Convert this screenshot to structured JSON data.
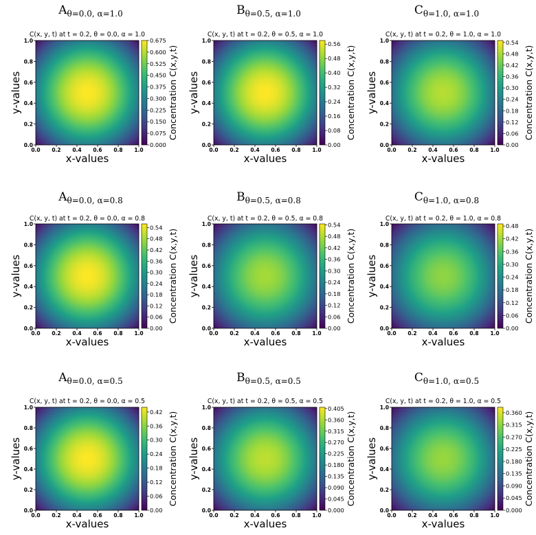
{
  "colors": {
    "colormap": [
      "#440154",
      "#46327e",
      "#365c8d",
      "#277f8e",
      "#1fa187",
      "#4ac16d",
      "#a0da39",
      "#fde725"
    ],
    "text": "#000000",
    "background": "#ffffff"
  },
  "chart_data": [
    {
      "type": "heatmap",
      "label_letter": "A",
      "label_sub": "θ=0.0, α=1.0",
      "title": "C(x, y, t) at t = 0.2, θ = 0.0,  α = 1.0",
      "xlabel": "x-values",
      "ylabel": "y-values",
      "colorbar_label": "Concentration  C(x,y,t)",
      "xlim": [
        0,
        1
      ],
      "ylim": [
        0,
        1
      ],
      "xticks": [
        "0.0",
        "0.2",
        "0.4",
        "0.6",
        "0.8",
        "1.0"
      ],
      "yticks": [
        "0.0",
        "0.2",
        "0.4",
        "0.6",
        "0.8",
        "1.0"
      ],
      "peak": 0.675,
      "cmax": 0.675,
      "cbar_ticks": [
        "0.000",
        "0.075",
        "0.150",
        "0.225",
        "0.300",
        "0.375",
        "0.450",
        "0.525",
        "0.600",
        "0.675"
      ],
      "cbar_values": [
        0,
        0.075,
        0.15,
        0.225,
        0.3,
        0.375,
        0.45,
        0.525,
        0.6,
        0.675
      ]
    },
    {
      "type": "heatmap",
      "label_letter": "B",
      "label_sub": "θ=0.5, α=1.0",
      "title": "C(x, y, t) at t = 0.2, θ = 0.5,  α = 1.0",
      "xlabel": "x-values",
      "ylabel": "y-values",
      "colorbar_label": "Concentration  C(x,y,t)",
      "xlim": [
        0,
        1
      ],
      "ylim": [
        0,
        1
      ],
      "xticks": [
        "0.0",
        "0.2",
        "0.4",
        "0.6",
        "0.8",
        "1.0"
      ],
      "yticks": [
        "0.0",
        "0.2",
        "0.4",
        "0.6",
        "0.8",
        "1.0"
      ],
      "peak": 0.58,
      "cmax": 0.58,
      "cbar_ticks": [
        "0.00",
        "0.08",
        "0.16",
        "0.24",
        "0.32",
        "0.40",
        "0.48",
        "0.56"
      ],
      "cbar_values": [
        0,
        0.08,
        0.16,
        0.24,
        0.32,
        0.4,
        0.48,
        0.56
      ]
    },
    {
      "type": "heatmap",
      "label_letter": "C",
      "label_sub": "θ=1.0, α=1.0",
      "title": "C(x, y, t) at t = 0.2, θ = 1.0,  α = 1.0",
      "xlabel": "x-values",
      "ylabel": "y-values",
      "colorbar_label": "Concentration  C(x,y,t)",
      "xlim": [
        0,
        1
      ],
      "ylim": [
        0,
        1
      ],
      "xticks": [
        "0.0",
        "0.2",
        "0.4",
        "0.6",
        "0.8",
        "1.0"
      ],
      "yticks": [
        "0.0",
        "0.2",
        "0.4",
        "0.6",
        "0.8",
        "1.0"
      ],
      "peak": 0.49,
      "cmax": 0.55,
      "cbar_ticks": [
        "0.00",
        "0.06",
        "0.12",
        "0.18",
        "0.24",
        "0.30",
        "0.36",
        "0.42",
        "0.48",
        "0.54"
      ],
      "cbar_values": [
        0,
        0.06,
        0.12,
        0.18,
        0.24,
        0.3,
        0.36,
        0.42,
        0.48,
        0.54
      ]
    },
    {
      "type": "heatmap",
      "label_letter": "A",
      "label_sub": "θ=0.0, α=0.8",
      "title": "C(x, y, t) at t = 0.2, θ = 0.0,  α = 0.8",
      "xlabel": "x-values",
      "ylabel": "y-values",
      "colorbar_label": "Concentration  C(x,y,t)",
      "xlim": [
        0,
        1
      ],
      "ylim": [
        0,
        1
      ],
      "xticks": [
        "0.0",
        "0.2",
        "0.4",
        "0.6",
        "0.8",
        "1.0"
      ],
      "yticks": [
        "0.0",
        "0.2",
        "0.4",
        "0.6",
        "0.8",
        "1.0"
      ],
      "peak": 0.56,
      "cmax": 0.56,
      "cbar_ticks": [
        "0.00",
        "0.06",
        "0.12",
        "0.18",
        "0.24",
        "0.30",
        "0.36",
        "0.42",
        "0.48",
        "0.54"
      ],
      "cbar_values": [
        0,
        0.06,
        0.12,
        0.18,
        0.24,
        0.3,
        0.36,
        0.42,
        0.48,
        0.54
      ]
    },
    {
      "type": "heatmap",
      "label_letter": "B",
      "label_sub": "θ=0.5, α=0.8",
      "title": "C(x, y, t) at t = 0.2, θ = 0.5,  α = 0.8",
      "xlabel": "x-values",
      "ylabel": "y-values",
      "colorbar_label": "Concentration  C(x,y,t)",
      "xlim": [
        0,
        1
      ],
      "ylim": [
        0,
        1
      ],
      "xticks": [
        "0.0",
        "0.2",
        "0.4",
        "0.6",
        "0.8",
        "1.0"
      ],
      "yticks": [
        "0.0",
        "0.2",
        "0.4",
        "0.6",
        "0.8",
        "1.0"
      ],
      "peak": 0.47,
      "cmax": 0.545,
      "cbar_ticks": [
        "0.00",
        "0.06",
        "0.12",
        "0.18",
        "0.24",
        "0.30",
        "0.36",
        "0.42",
        "0.48",
        "0.54"
      ],
      "cbar_values": [
        0,
        0.06,
        0.12,
        0.18,
        0.24,
        0.3,
        0.36,
        0.42,
        0.48,
        0.54
      ]
    },
    {
      "type": "heatmap",
      "label_letter": "C",
      "label_sub": "θ=1.0, α=0.8",
      "title": "C(x, y, t) at t = 0.2, θ = 1.0,  α = 0.8",
      "xlabel": "x-values",
      "ylabel": "y-values",
      "colorbar_label": "Concentration  C(x,y,t)",
      "xlim": [
        0,
        1
      ],
      "ylim": [
        0,
        1
      ],
      "xticks": [
        "0.0",
        "0.2",
        "0.4",
        "0.6",
        "0.8",
        "1.0"
      ],
      "yticks": [
        "0.0",
        "0.2",
        "0.4",
        "0.6",
        "0.8",
        "1.0"
      ],
      "peak": 0.405,
      "cmax": 0.49,
      "cbar_ticks": [
        "0.00",
        "0.06",
        "0.12",
        "0.18",
        "0.24",
        "0.30",
        "0.36",
        "0.42",
        "0.48"
      ],
      "cbar_values": [
        0,
        0.06,
        0.12,
        0.18,
        0.24,
        0.3,
        0.36,
        0.42,
        0.48
      ]
    },
    {
      "type": "heatmap",
      "label_letter": "A",
      "label_sub": "θ=0.0, α=0.5",
      "title": "C(x, y, t) at t = 0.2, θ = 0.0,  α = 0.5",
      "xlabel": "x-values",
      "ylabel": "y-values",
      "colorbar_label": "Concentration  C(x,y,t)",
      "xlim": [
        0,
        1
      ],
      "ylim": [
        0,
        1
      ],
      "xticks": [
        "0.0",
        "0.2",
        "0.4",
        "0.6",
        "0.8",
        "1.0"
      ],
      "yticks": [
        "0.0",
        "0.2",
        "0.4",
        "0.6",
        "0.8",
        "1.0"
      ],
      "peak": 0.44,
      "cmax": 0.44,
      "cbar_ticks": [
        "0.00",
        "0.06",
        "0.12",
        "0.18",
        "0.24",
        "0.30",
        "0.36",
        "0.42"
      ],
      "cbar_values": [
        0,
        0.06,
        0.12,
        0.18,
        0.24,
        0.3,
        0.36,
        0.42
      ]
    },
    {
      "type": "heatmap",
      "label_letter": "B",
      "label_sub": "θ=0.5, α=0.5",
      "title": "C(x, y, t) at t = 0.2, θ = 0.5,  α = 0.5",
      "xlabel": "x-values",
      "ylabel": "y-values",
      "colorbar_label": "Concentration  C(x,y,t)",
      "xlim": [
        0,
        1
      ],
      "ylim": [
        0,
        1
      ],
      "xticks": [
        "0.0",
        "0.2",
        "0.4",
        "0.6",
        "0.8",
        "1.0"
      ],
      "yticks": [
        "0.0",
        "0.2",
        "0.4",
        "0.6",
        "0.8",
        "1.0"
      ],
      "peak": 0.37,
      "cmax": 0.41,
      "cbar_ticks": [
        "0.000",
        "0.045",
        "0.090",
        "0.135",
        "0.180",
        "0.225",
        "0.270",
        "0.315",
        "0.360",
        "0.405"
      ],
      "cbar_values": [
        0,
        0.045,
        0.09,
        0.135,
        0.18,
        0.225,
        0.27,
        0.315,
        0.36,
        0.405
      ]
    },
    {
      "type": "heatmap",
      "label_letter": "C",
      "label_sub": "θ=1.0, α=0.5",
      "title": "C(x, y, t) at t = 0.2, θ = 1.0,  α = 0.5",
      "xlabel": "x-values",
      "ylabel": "y-values",
      "colorbar_label": "Concentration  C(x,y,t)",
      "xlim": [
        0,
        1
      ],
      "ylim": [
        0,
        1
      ],
      "xticks": [
        "0.0",
        "0.2",
        "0.4",
        "0.6",
        "0.8",
        "1.0"
      ],
      "yticks": [
        "0.0",
        "0.2",
        "0.4",
        "0.6",
        "0.8",
        "1.0"
      ],
      "peak": 0.32,
      "cmax": 0.38,
      "cbar_ticks": [
        "0.000",
        "0.045",
        "0.090",
        "0.135",
        "0.180",
        "0.225",
        "0.270",
        "0.315",
        "0.360"
      ],
      "cbar_values": [
        0,
        0.045,
        0.09,
        0.135,
        0.18,
        0.225,
        0.27,
        0.315,
        0.36
      ]
    }
  ]
}
